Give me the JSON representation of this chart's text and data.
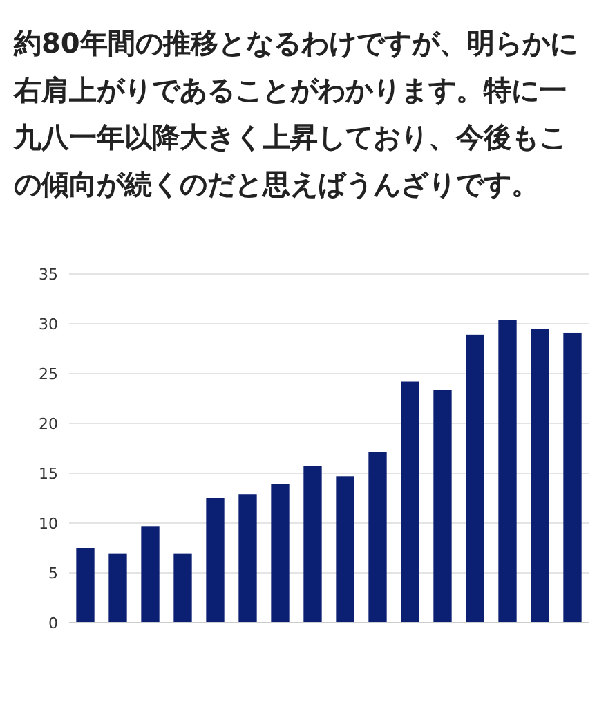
{
  "chart_data": {
    "type": "bar",
    "annotations": [
      "約80年間の推移となるわけですが、明らかに右肩上がりであることがわかります。特に一九八一年以降大きく上昇しており、今後もこの傾向が続くのだと思えばうんざりです。"
    ],
    "categories": [
      null,
      null,
      null,
      null,
      null,
      null,
      null,
      null,
      null,
      null,
      null,
      null,
      null,
      null,
      null,
      null
    ],
    "values": [
      7.5,
      6.9,
      9.7,
      6.9,
      12.5,
      12.9,
      13.9,
      15.7,
      14.7,
      17.1,
      24.2,
      23.4,
      28.9,
      30.4,
      29.5,
      29.1
    ],
    "color": "#0b1f73",
    "ylim": [
      0,
      35
    ],
    "yticks": [
      0,
      5,
      10,
      15,
      20,
      25,
      30,
      35
    ],
    "grid": "y"
  }
}
